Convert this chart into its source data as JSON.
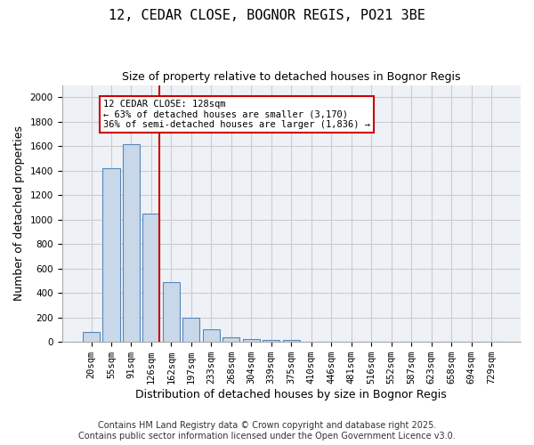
{
  "title": "12, CEDAR CLOSE, BOGNOR REGIS, PO21 3BE",
  "subtitle": "Size of property relative to detached houses in Bognor Regis",
  "xlabel": "Distribution of detached houses by size in Bognor Regis",
  "ylabel": "Number of detached properties",
  "bar_values": [
    80,
    1420,
    1620,
    1050,
    490,
    200,
    100,
    35,
    25,
    15,
    15,
    0,
    0,
    0,
    0,
    0,
    0,
    0,
    0,
    0,
    0
  ],
  "categories": [
    "20sqm",
    "55sqm",
    "91sqm",
    "126sqm",
    "162sqm",
    "197sqm",
    "233sqm",
    "268sqm",
    "304sqm",
    "339sqm",
    "375sqm",
    "410sqm",
    "446sqm",
    "481sqm",
    "516sqm",
    "552sqm",
    "587sqm",
    "623sqm",
    "658sqm",
    "694sqm",
    "729sqm"
  ],
  "bar_color": "#c8d8e8",
  "bar_edge_color": "#5588bb",
  "grid_color": "#cccccc",
  "background_color": "#eef2f7",
  "red_line_index": 3,
  "annotation_line1": "12 CEDAR CLOSE: 128sqm",
  "annotation_line2": "← 63% of detached houses are smaller (3,170)",
  "annotation_line3": "36% of semi-detached houses are larger (1,836) →",
  "annotation_box_color": "#ffffff",
  "annotation_box_edge": "#cc0000",
  "ylim": [
    0,
    2100
  ],
  "yticks": [
    0,
    200,
    400,
    600,
    800,
    1000,
    1200,
    1400,
    1600,
    1800,
    2000
  ],
  "footer1": "Contains HM Land Registry data © Crown copyright and database right 2025.",
  "footer2": "Contains public sector information licensed under the Open Government Licence v3.0.",
  "title_fontsize": 11,
  "subtitle_fontsize": 9,
  "xlabel_fontsize": 9,
  "ylabel_fontsize": 9,
  "tick_fontsize": 7.5,
  "footer_fontsize": 7
}
